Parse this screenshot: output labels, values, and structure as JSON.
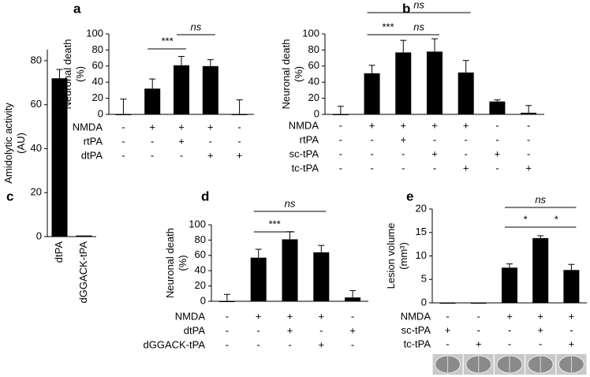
{
  "chart_data": [
    {
      "type": "bar",
      "label": "a",
      "ylabel": [
        "Neuronal death",
        "(%)"
      ],
      "values": [
        0,
        32,
        61,
        60,
        0
      ],
      "errors": [
        19,
        12,
        11,
        8,
        18
      ],
      "ylim": [
        0,
        100
      ],
      "yticks": [
        0,
        20,
        40,
        60,
        80,
        100
      ],
      "color": "#000000",
      "conditions": [
        {
          "name": "NMDA",
          "signs": [
            "-",
            "+",
            "+",
            "+",
            "-"
          ]
        },
        {
          "name": "rtPA",
          "signs": [
            "-",
            "-",
            "+",
            "-",
            "-"
          ]
        },
        {
          "name": "dtPA",
          "signs": [
            "-",
            "-",
            "-",
            "+",
            "+"
          ]
        }
      ],
      "comparisons": [
        {
          "label": "***",
          "between": [
            1,
            2
          ]
        },
        {
          "label": "ns",
          "between": [
            2,
            3
          ]
        }
      ]
    },
    {
      "type": "bar",
      "label": "b",
      "ylabel": [
        "Neuronal death",
        "(%)"
      ],
      "values": [
        0,
        51,
        77,
        78,
        52,
        16,
        2
      ],
      "errors": [
        10,
        10,
        15,
        16,
        15,
        2,
        9
      ],
      "ylim": [
        0,
        100
      ],
      "yticks": [
        0,
        20,
        40,
        60,
        80,
        100
      ],
      "color": "#000000",
      "conditions": [
        {
          "name": "NMDA",
          "signs": [
            "-",
            "+",
            "+",
            "+",
            "+",
            "-",
            "-"
          ]
        },
        {
          "name": "rtPA",
          "signs": [
            "-",
            "-",
            "+",
            "-",
            "-",
            "-",
            "-"
          ]
        },
        {
          "name": "sc-tPA",
          "signs": [
            "-",
            "-",
            "-",
            "+",
            "-",
            "+",
            "-"
          ]
        },
        {
          "name": "tc-tPA",
          "signs": [
            "-",
            "-",
            "-",
            "-",
            "+",
            "-",
            "+"
          ]
        }
      ],
      "comparisons": [
        {
          "label": "***",
          "between": [
            1,
            2
          ]
        },
        {
          "label": "ns",
          "between": [
            2,
            3
          ]
        },
        {
          "label": "ns",
          "between": [
            1,
            4
          ]
        }
      ]
    },
    {
      "type": "bar",
      "label": "c",
      "ylabel": [
        "Amidolytic activity",
        "(AU)"
      ],
      "categories": [
        "dtPA",
        "dGGACK-tPA"
      ],
      "values": [
        72,
        0.5
      ],
      "errors": [
        4,
        0
      ],
      "ylim": [
        0,
        85
      ],
      "yticks": [
        0,
        20,
        40,
        60,
        80
      ],
      "color": "#000000"
    },
    {
      "type": "bar",
      "label": "d",
      "ylabel": [
        "Neuronal death",
        "(%)"
      ],
      "values": [
        0,
        57,
        81,
        64,
        5
      ],
      "errors": [
        9,
        11,
        10,
        9,
        9
      ],
      "ylim": [
        0,
        100
      ],
      "yticks": [
        0,
        20,
        40,
        60,
        80,
        100
      ],
      "color": "#000000",
      "conditions": [
        {
          "name": "NMDA",
          "signs": [
            "-",
            "+",
            "+",
            "+",
            "-"
          ]
        },
        {
          "name": "dtPA",
          "signs": [
            "-",
            "-",
            "+",
            "-",
            "+"
          ]
        },
        {
          "name": "dGGACK-tPA",
          "signs": [
            "-",
            "-",
            "-",
            "+",
            "-"
          ]
        }
      ],
      "comparisons": [
        {
          "label": "***",
          "between": [
            1,
            2
          ]
        },
        {
          "label": "ns",
          "between": [
            1,
            3
          ]
        }
      ]
    },
    {
      "type": "bar",
      "label": "e",
      "ylabel": [
        "Lesion volume",
        "(mm³)"
      ],
      "values": [
        0,
        0,
        7.5,
        13.8,
        7.0
      ],
      "errors": [
        0,
        0,
        0.8,
        0.5,
        1.2
      ],
      "ylim": [
        0,
        20
      ],
      "yticks": [
        0,
        5,
        10,
        15,
        20
      ],
      "color": "#000000",
      "conditions": [
        {
          "name": "NMDA",
          "signs": [
            "-",
            "-",
            "+",
            "+",
            "+"
          ]
        },
        {
          "name": "sc-tPA",
          "signs": [
            "+",
            "-",
            "-",
            "+",
            "-"
          ]
        },
        {
          "name": "tc-tPA",
          "signs": [
            "-",
            "+",
            "-",
            "-",
            "+"
          ]
        }
      ],
      "comparisons": [
        {
          "label": "*",
          "between": [
            2,
            3
          ]
        },
        {
          "label": "*",
          "between": [
            3,
            4
          ]
        },
        {
          "label": "ns",
          "between": [
            2,
            4
          ]
        }
      ]
    }
  ]
}
